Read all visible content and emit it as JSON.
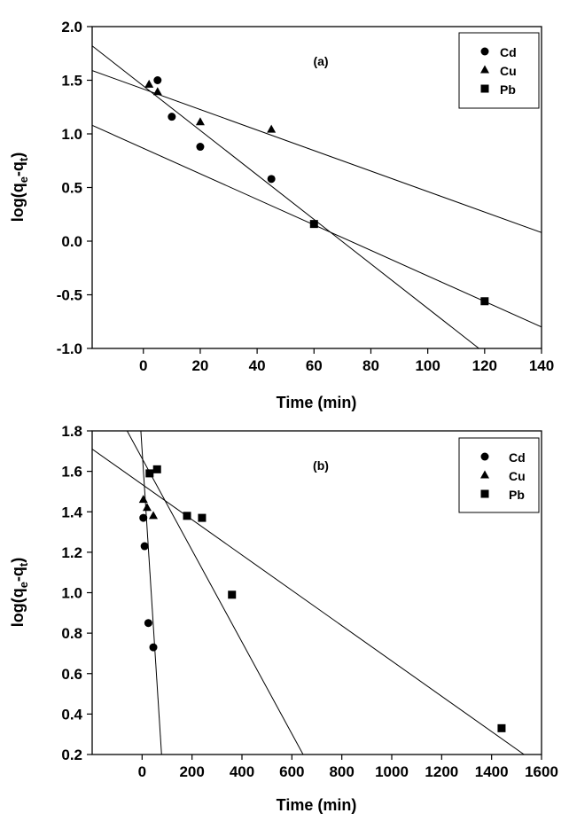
{
  "chart_data": [
    {
      "type": "scatter",
      "panel_label": "(a)",
      "xlabel": "Time (min)",
      "ylabel_main": "log(q",
      "ylabel_sub1": "e",
      "ylabel_mid": "-q",
      "ylabel_sub2": "t",
      "ylabel_end": ")",
      "xlim": [
        -18,
        140
      ],
      "ylim": [
        -1.0,
        2.0
      ],
      "xticks": [
        0,
        20,
        40,
        60,
        80,
        100,
        120,
        140
      ],
      "yticks": [
        -1.0,
        -0.5,
        0.0,
        0.5,
        1.0,
        1.5,
        2.0
      ],
      "ytick_labels": [
        "-1.0",
        "-0.5",
        "0.0",
        "0.5",
        "1.0",
        "1.5",
        "2.0"
      ],
      "legend_position": "top-right",
      "series": [
        {
          "name": "Cd",
          "marker": "circle",
          "points": [
            [
              5,
              1.5
            ],
            [
              10,
              1.16
            ],
            [
              20,
              0.88
            ],
            [
              45,
              0.58
            ]
          ]
        },
        {
          "name": "Cu",
          "marker": "triangle",
          "points": [
            [
              2,
              1.46
            ],
            [
              5,
              1.39
            ],
            [
              20,
              1.11
            ],
            [
              45,
              1.04
            ]
          ]
        },
        {
          "name": "Pb",
          "marker": "square",
          "points": [
            [
              60,
              0.16
            ],
            [
              120,
              -0.56
            ]
          ]
        }
      ],
      "fit_lines": [
        {
          "name": "Cd",
          "x": [
            -18,
            118
          ],
          "y": [
            1.82,
            -1.0
          ]
        },
        {
          "name": "Cu",
          "x": [
            -18,
            140
          ],
          "y": [
            1.59,
            0.08
          ]
        },
        {
          "name": "Pb",
          "x": [
            -18,
            140
          ],
          "y": [
            1.08,
            -0.8
          ]
        }
      ]
    },
    {
      "type": "scatter",
      "panel_label": "(b)",
      "xlabel": "Time (min)",
      "ylabel_main": "log(q",
      "ylabel_sub1": "e",
      "ylabel_mid": "-q",
      "ylabel_sub2": "t",
      "ylabel_end": ")",
      "xlim": [
        -200,
        1600
      ],
      "ylim": [
        0.2,
        1.8
      ],
      "xticks": [
        0,
        200,
        400,
        600,
        800,
        1000,
        1200,
        1400,
        1600
      ],
      "yticks": [
        0.2,
        0.4,
        0.6,
        0.8,
        1.0,
        1.2,
        1.4,
        1.6,
        1.8
      ],
      "ytick_labels": [
        "0.2",
        "0.4",
        "0.6",
        "0.8",
        "1.0",
        "1.2",
        "1.4",
        "1.6",
        "1.8"
      ],
      "legend_position": "top-right",
      "series": [
        {
          "name": "Cd",
          "marker": "circle",
          "points": [
            [
              5,
              1.37
            ],
            [
              10,
              1.23
            ],
            [
              25,
              0.85
            ],
            [
              45,
              0.73
            ]
          ]
        },
        {
          "name": "Cu",
          "marker": "triangle",
          "points": [
            [
              5,
              1.46
            ],
            [
              20,
              1.42
            ],
            [
              45,
              1.38
            ]
          ]
        },
        {
          "name": "Pb",
          "marker": "square",
          "points": [
            [
              30,
              1.59
            ],
            [
              60,
              1.61
            ],
            [
              180,
              1.38
            ],
            [
              240,
              1.37
            ],
            [
              360,
              0.99
            ],
            [
              1440,
              0.33
            ]
          ]
        }
      ],
      "fit_lines": [
        {
          "name": "Cd",
          "x": [
            -5,
            78
          ],
          "y": [
            1.8,
            0.2
          ]
        },
        {
          "name": "Cu",
          "x": [
            -60,
            645
          ],
          "y": [
            1.8,
            0.2
          ]
        },
        {
          "name": "Pb",
          "x": [
            -200,
            1530
          ],
          "y": [
            1.71,
            0.2
          ]
        }
      ]
    }
  ]
}
